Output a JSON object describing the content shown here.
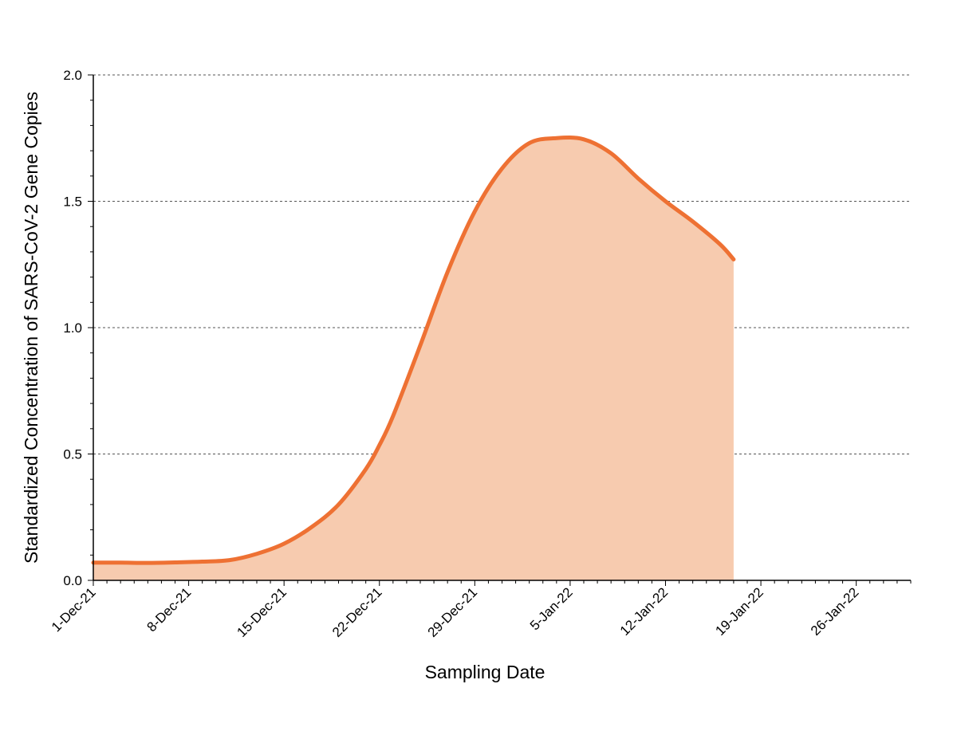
{
  "chart_data": {
    "type": "area",
    "title": "",
    "xlabel": "Sampling Date",
    "ylabel": "Standardized Concentration of SARS-CoV-2 Gene Copies",
    "x_tick_labels": [
      "1-Dec-21",
      "8-Dec-21",
      "15-Dec-21",
      "22-Dec-21",
      "29-Dec-21",
      "5-Jan-22",
      "12-Jan-22",
      "19-Jan-22",
      "26-Jan-22"
    ],
    "y_tick_labels": [
      "0.0",
      "0.5",
      "1.0",
      "1.5",
      "2.0"
    ],
    "xlim": [
      "2021-12-01",
      "2022-01-30"
    ],
    "ylim": [
      0,
      2.0
    ],
    "y_major_step": 0.5,
    "y_minor_step": 0.1,
    "x_minor_step_days": 1,
    "grid": "horizontal dashed at major y ticks",
    "legend": "none",
    "line_color": "#EE7133",
    "fill_color": "#F7CBAF",
    "series": [
      {
        "x": [
          "2021-12-01",
          "2021-12-03",
          "2021-12-05",
          "2021-12-07",
          "2021-12-09",
          "2021-12-11",
          "2021-12-13",
          "2021-12-15",
          "2021-12-17",
          "2021-12-19",
          "2021-12-21",
          "2021-12-22",
          "2021-12-23",
          "2021-12-25",
          "2021-12-27",
          "2021-12-29",
          "2021-12-31",
          "2022-01-02",
          "2022-01-04",
          "2022-01-06",
          "2022-01-08",
          "2022-01-10",
          "2022-01-12",
          "2022-01-14",
          "2022-01-16",
          "2022-01-17"
        ],
        "y": [
          0.07,
          0.07,
          0.069,
          0.071,
          0.074,
          0.08,
          0.105,
          0.145,
          0.21,
          0.3,
          0.44,
          0.535,
          0.65,
          0.93,
          1.22,
          1.46,
          1.63,
          1.73,
          1.75,
          1.745,
          1.69,
          1.59,
          1.5,
          1.42,
          1.33,
          1.27
        ]
      }
    ]
  }
}
